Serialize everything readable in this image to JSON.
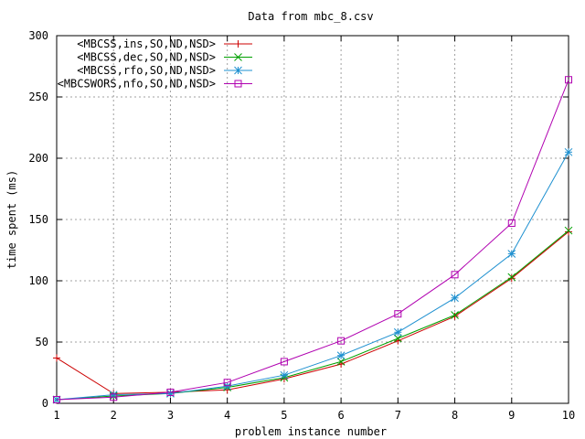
{
  "chart_data": {
    "type": "line",
    "title": "Data from mbc_8.csv",
    "xlabel": "problem instance number",
    "ylabel": "time spent (ms)",
    "x": [
      1,
      2,
      3,
      4,
      5,
      6,
      7,
      8,
      9,
      10
    ],
    "xlim": [
      1,
      10
    ],
    "ylim": [
      0,
      300
    ],
    "xticks": [
      "1",
      "2",
      "3",
      "4",
      "5",
      "6",
      "7",
      "8",
      "9",
      "10"
    ],
    "yticks": [
      "0",
      "50",
      "100",
      "150",
      "200",
      "250",
      "300"
    ],
    "grid": true,
    "legend_position": "top-left",
    "series": [
      {
        "name": "<MBCSS,ins,SO,ND,NSD>",
        "color": "#cc0000",
        "marker": "plus",
        "values": [
          37,
          8,
          9,
          11,
          20,
          32,
          51,
          71,
          102,
          140
        ]
      },
      {
        "name": "<MBCSS,dec,SO,ND,NSD>",
        "color": "#00a000",
        "marker": "cross",
        "values": [
          3,
          6,
          8,
          13,
          21,
          34,
          53,
          72,
          103,
          141
        ]
      },
      {
        "name": "<MBCSS,rfo,SO,ND,NSD>",
        "color": "#1e90d0",
        "marker": "star",
        "values": [
          3,
          7,
          8,
          14,
          23,
          39,
          58,
          86,
          122,
          205
        ]
      },
      {
        "name": "<MBCSWORS,nfo,SO,ND,NSD>",
        "color": "#b000b0",
        "marker": "square",
        "values": [
          3,
          5,
          9,
          17,
          34,
          51,
          73,
          105,
          147,
          264
        ]
      }
    ]
  }
}
